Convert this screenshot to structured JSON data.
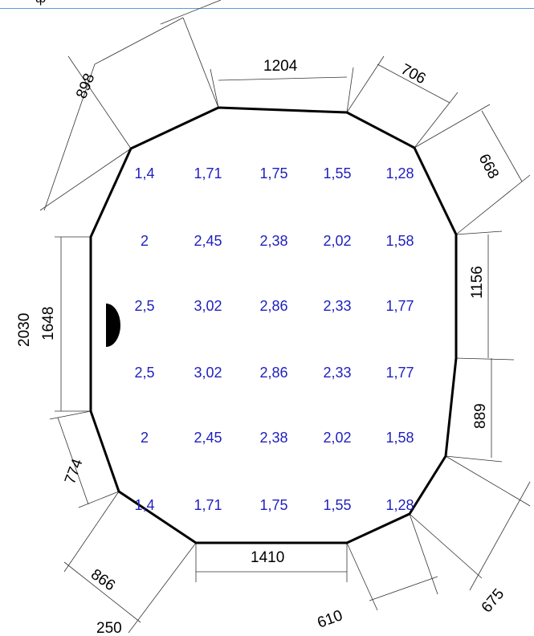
{
  "top_strip": {
    "text": "ф"
  },
  "dimensions": {
    "top": "1204",
    "top_right_1": "706",
    "top_right_2": "668",
    "right_1": "1156",
    "right_2": "889",
    "bottom_right_1": "675",
    "bottom_right_2": "610",
    "bottom": "1410",
    "bottom_left_1": "866",
    "bottom_left_2": "250",
    "left_lower": "774",
    "left_inner": "1648",
    "left_outer": "2030",
    "top_left": "898"
  },
  "grid": {
    "value_color": "#1f1fbf",
    "rows": [
      [
        "1,4",
        "1,71",
        "1,75",
        "1,55",
        "1,28"
      ],
      [
        "2",
        "2,45",
        "2,38",
        "2,02",
        "1,58"
      ],
      [
        "2,5",
        "3,02",
        "2,86",
        "2,33",
        "1,77"
      ],
      [
        "2,5",
        "3,02",
        "2,86",
        "2,33",
        "1,77"
      ],
      [
        "2",
        "2,45",
        "2,38",
        "2,02",
        "1,58"
      ],
      [
        "1,4",
        "1,71",
        "1,75",
        "1,55",
        "1,28"
      ]
    ]
  }
}
